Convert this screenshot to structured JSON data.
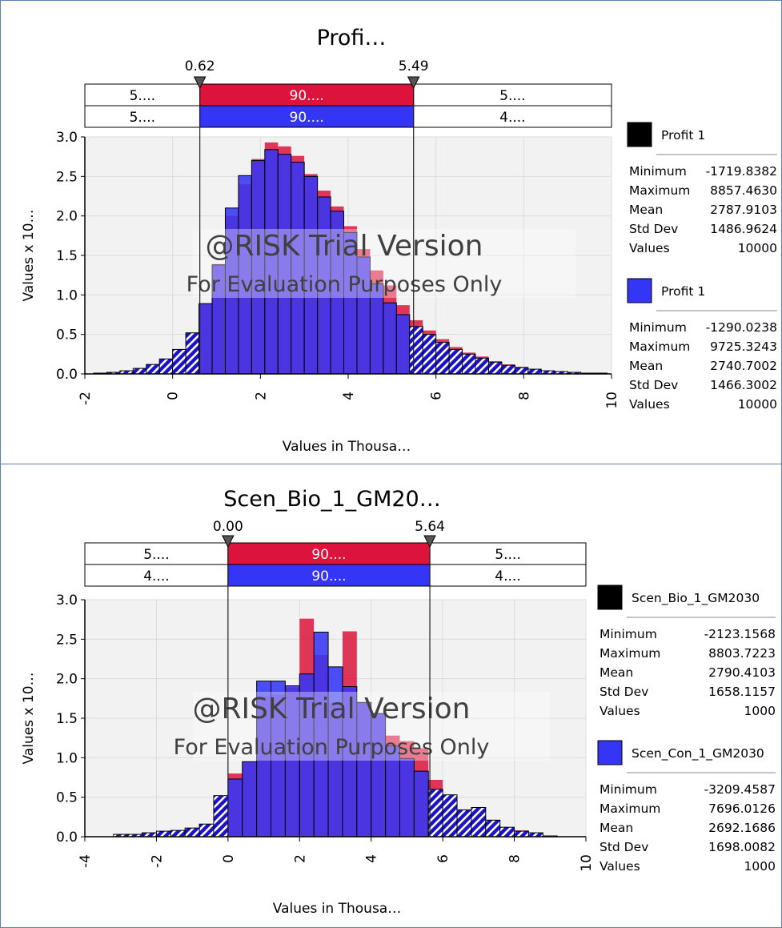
{
  "colors": {
    "red": "#dc143c",
    "blue": "#3535f5",
    "dark_blue": "#1b12c8",
    "black": "#000000",
    "plot_bg": "#f2f2f2"
  },
  "watermark": {
    "line1": "@RISK Trial Version",
    "line2": "For Evaluation Purposes Only"
  },
  "chart_data": [
    {
      "type": "bar",
      "title": "Profi…",
      "xlabel": "Values in Thousa…",
      "ylabel": "Values x 10…",
      "xlim": [
        -2,
        10
      ],
      "ylim": [
        0,
        3.0
      ],
      "x_ticks": [
        "-2",
        "0",
        "2",
        "4",
        "6",
        "8",
        "10"
      ],
      "y_ticks": [
        "0.0",
        "0.5",
        "1.0",
        "1.5",
        "2.0",
        "2.5",
        "3.0"
      ],
      "left_marker": {
        "label": "0.62",
        "value": 0.62
      },
      "right_marker": {
        "label": "5.49",
        "value": 5.49
      },
      "band_red": [
        "5....",
        "90....",
        "5...."
      ],
      "band_blue": [
        "5....",
        "90....",
        "4...."
      ],
      "bin_width": 0.3,
      "series": [
        {
          "name": "Profit 1",
          "color": "red",
          "bins_x": [
            -1.8,
            -1.5,
            -1.2,
            -0.9,
            -0.6,
            -0.3,
            0.0,
            0.3,
            0.6,
            0.9,
            1.2,
            1.5,
            1.8,
            2.1,
            2.4,
            2.7,
            3.0,
            3.3,
            3.6,
            3.9,
            4.2,
            4.5,
            4.8,
            5.1,
            5.4,
            5.7,
            6.0,
            6.3,
            6.6,
            6.9,
            7.2,
            7.5,
            7.8,
            8.1,
            8.4,
            8.7,
            9.0,
            9.3,
            9.6
          ],
          "values": [
            0.01,
            0.02,
            0.04,
            0.07,
            0.12,
            0.19,
            0.31,
            0.52,
            0.89,
            1.39,
            2.0,
            2.4,
            2.72,
            2.93,
            2.88,
            2.76,
            2.53,
            2.32,
            2.12,
            1.87,
            1.58,
            1.31,
            1.12,
            0.87,
            0.68,
            0.55,
            0.44,
            0.34,
            0.27,
            0.22,
            0.16,
            0.12,
            0.09,
            0.06,
            0.04,
            0.03,
            0.02,
            0.01,
            0.01
          ]
        },
        {
          "name": "Profit 1",
          "color": "blue",
          "bins_x": [
            -1.8,
            -1.5,
            -1.2,
            -0.9,
            -0.6,
            -0.3,
            0.0,
            0.3,
            0.6,
            0.9,
            1.2,
            1.5,
            1.8,
            2.1,
            2.4,
            2.7,
            3.0,
            3.3,
            3.6,
            3.9,
            4.2,
            4.5,
            4.8,
            5.1,
            5.4,
            5.7,
            6.0,
            6.3,
            6.6,
            6.9,
            7.2,
            7.5,
            7.8,
            8.1,
            8.4,
            8.7,
            9.0,
            9.3,
            9.6
          ],
          "values": [
            0.01,
            0.02,
            0.04,
            0.07,
            0.12,
            0.19,
            0.31,
            0.52,
            0.89,
            1.38,
            2.1,
            2.51,
            2.7,
            2.84,
            2.78,
            2.68,
            2.5,
            2.24,
            2.06,
            1.79,
            1.48,
            1.14,
            0.9,
            0.75,
            0.6,
            0.5,
            0.4,
            0.31,
            0.25,
            0.2,
            0.15,
            0.11,
            0.08,
            0.06,
            0.04,
            0.03,
            0.02,
            0.01,
            0.01
          ]
        }
      ],
      "stats": [
        {
          "name": "Profit 1",
          "swatch": "black",
          "rows": [
            [
              "Minimum",
              "-1719.8382"
            ],
            [
              "Maximum",
              "8857.4630"
            ],
            [
              "Mean",
              "2787.9103"
            ],
            [
              "Std Dev",
              "1486.9624"
            ],
            [
              "Values",
              "10000"
            ]
          ]
        },
        {
          "name": "Profit 1",
          "swatch": "blue",
          "rows": [
            [
              "Minimum",
              "-1290.0238"
            ],
            [
              "Maximum",
              "9725.3243"
            ],
            [
              "Mean",
              "2740.7002"
            ],
            [
              "Std Dev",
              "1466.3002"
            ],
            [
              "Values",
              "10000"
            ]
          ]
        }
      ]
    },
    {
      "type": "bar",
      "title": "Scen_Bio_1_GM20…",
      "xlabel": "Values in Thousa…",
      "ylabel": "Values x 10…",
      "xlim": [
        -4,
        10
      ],
      "ylim": [
        0,
        3.0
      ],
      "x_ticks": [
        "-4",
        "-2",
        "0",
        "2",
        "4",
        "6",
        "8",
        "10"
      ],
      "y_ticks": [
        "0.0",
        "0.5",
        "1.0",
        "1.5",
        "2.0",
        "2.5",
        "3.0"
      ],
      "left_marker": {
        "label": "0.00",
        "value": 0.0
      },
      "right_marker": {
        "label": "5.64",
        "value": 5.64
      },
      "band_red": [
        "5....",
        "90....",
        "5...."
      ],
      "band_blue": [
        "4....",
        "90....",
        "4...."
      ],
      "bin_width": 0.4,
      "series": [
        {
          "name": "Scen_Bio_1_GM2030",
          "color": "red",
          "bins_x": [
            -3.2,
            -2.8,
            -2.4,
            -2.0,
            -1.6,
            -1.2,
            -0.8,
            -0.4,
            0.0,
            0.4,
            0.8,
            1.2,
            1.6,
            2.0,
            2.4,
            2.8,
            3.2,
            3.6,
            4.0,
            4.4,
            4.8,
            5.2,
            5.6,
            6.0,
            6.4,
            6.8,
            7.2,
            7.6,
            8.0,
            8.4,
            8.8
          ],
          "values": [
            0.03,
            0.03,
            0.05,
            0.07,
            0.08,
            0.11,
            0.16,
            0.52,
            0.8,
            0.95,
            1.78,
            1.8,
            1.89,
            2.76,
            2.3,
            1.7,
            2.6,
            1.7,
            1.56,
            1.28,
            1.21,
            1.12,
            0.72,
            0.46,
            0.34,
            0.26,
            0.21,
            0.12,
            0.08,
            0.05,
            0.01
          ]
        },
        {
          "name": "Scen_Con_1_GM2030",
          "color": "blue",
          "bins_x": [
            -3.2,
            -2.8,
            -2.4,
            -2.0,
            -1.6,
            -1.2,
            -0.8,
            -0.4,
            0.0,
            0.4,
            0.8,
            1.2,
            1.6,
            2.0,
            2.4,
            2.8,
            3.2,
            3.6,
            4.0,
            4.4,
            4.8,
            5.2,
            5.6,
            6.0,
            6.4,
            6.8,
            7.2,
            7.6,
            8.0,
            8.4,
            8.8
          ],
          "values": [
            0.03,
            0.03,
            0.05,
            0.07,
            0.08,
            0.11,
            0.16,
            0.52,
            0.73,
            0.95,
            1.97,
            1.97,
            1.91,
            2.06,
            2.59,
            2.15,
            1.9,
            1.7,
            1.56,
            1.15,
            0.99,
            0.83,
            0.6,
            0.53,
            0.34,
            0.37,
            0.21,
            0.12,
            0.07,
            0.05,
            0.01
          ]
        }
      ],
      "stats": [
        {
          "name": "Scen_Bio_1_GM2030",
          "swatch": "black",
          "rows": [
            [
              "Minimum",
              "-2123.1568"
            ],
            [
              "Maximum",
              "8803.7223"
            ],
            [
              "Mean",
              "2790.4103"
            ],
            [
              "Std Dev",
              "1658.1157"
            ],
            [
              "Values",
              "1000"
            ]
          ]
        },
        {
          "name": "Scen_Con_1_GM2030",
          "swatch": "blue",
          "rows": [
            [
              "Minimum",
              "-3209.4587"
            ],
            [
              "Maximum",
              "7696.0126"
            ],
            [
              "Mean",
              "2692.1686"
            ],
            [
              "Std Dev",
              "1698.0082"
            ],
            [
              "Values",
              "1000"
            ]
          ]
        }
      ]
    }
  ]
}
